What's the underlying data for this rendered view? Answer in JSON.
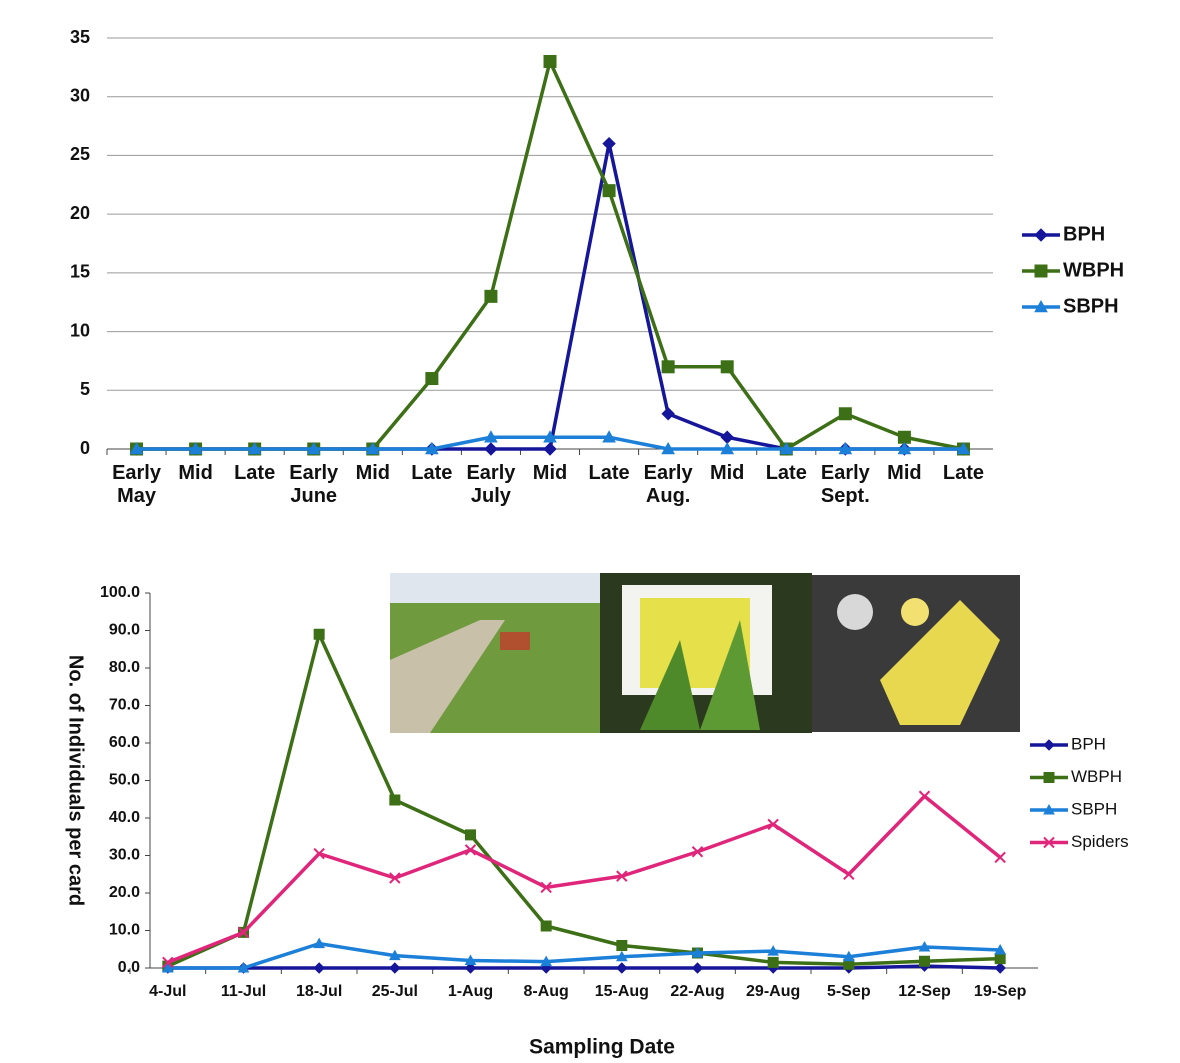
{
  "chart_data": [
    {
      "type": "line",
      "categories": [
        "Early May",
        "Mid",
        "Late",
        "Early June",
        "Mid",
        "Late",
        "Early July",
        "Mid",
        "Late",
        "Early Aug.",
        "Mid",
        "Late",
        "Early Sept.",
        "Mid",
        "Late"
      ],
      "series": [
        {
          "name": "BPH",
          "color": "#16169a",
          "marker": "diamond",
          "values": [
            0,
            0,
            0,
            0,
            0,
            0,
            0,
            0,
            26,
            3,
            1,
            0,
            0,
            0,
            0
          ]
        },
        {
          "name": "WBPH",
          "color": "#3d7016",
          "marker": "square",
          "values": [
            0,
            0,
            0,
            0,
            0,
            6,
            13,
            33,
            22,
            7,
            7,
            0,
            3,
            1,
            0
          ]
        },
        {
          "name": "SBPH",
          "color": "#1c7fd8",
          "marker": "triangle",
          "values": [
            0,
            0,
            0,
            0,
            0,
            0,
            1,
            1,
            1,
            0,
            0,
            0,
            0,
            0,
            0
          ]
        }
      ],
      "ylim": [
        0,
        35
      ],
      "yticks": [
        0,
        5,
        10,
        15,
        20,
        25,
        30,
        35
      ],
      "grid": true,
      "legend": "right"
    },
    {
      "type": "line",
      "x_label": "Sampling Date",
      "y_label": "No. of Individuals per card",
      "categories": [
        "4-Jul",
        "11-Jul",
        "18-Jul",
        "25-Jul",
        "1-Aug",
        "8-Aug",
        "15-Aug",
        "22-Aug",
        "29-Aug",
        "5-Sep",
        "12-Sep",
        "19-Sep"
      ],
      "series": [
        {
          "name": "BPH",
          "color": "#16169a",
          "marker": "diamond",
          "values": [
            0,
            0,
            0,
            0,
            0,
            0,
            0,
            0,
            0,
            0,
            0.5,
            0
          ]
        },
        {
          "name": "WBPH",
          "color": "#3d7016",
          "marker": "square",
          "values": [
            0.5,
            9.5,
            89,
            44.8,
            35.5,
            11.2,
            6,
            4,
            1.5,
            1,
            1.8,
            2.5
          ]
        },
        {
          "name": "SBPH",
          "color": "#1c7fd8",
          "marker": "triangle",
          "values": [
            0,
            0,
            6.5,
            3.3,
            2,
            1.7,
            3,
            4,
            4.5,
            3,
            5.6,
            4.8
          ]
        },
        {
          "name": "Spiders",
          "color": "#e0267a",
          "marker": "x",
          "values": [
            1.5,
            9.5,
            30.5,
            24,
            31.5,
            21.5,
            24.5,
            31,
            38.3,
            25,
            45.8,
            29.5
          ]
        }
      ],
      "ylim": [
        0,
        100
      ],
      "yticks": [
        {
          "value": 0,
          "label": "0.0"
        },
        {
          "value": 10,
          "label": "10.0"
        },
        {
          "value": 20,
          "label": "20.0"
        },
        {
          "value": 30,
          "label": "30.0"
        },
        {
          "value": 40,
          "label": "40.0"
        },
        {
          "value": 50,
          "label": "50.0"
        },
        {
          "value": 60,
          "label": "60.0"
        },
        {
          "value": 70,
          "label": "70.0"
        },
        {
          "value": 80,
          "label": "80.0"
        },
        {
          "value": 90,
          "label": "90.0"
        },
        {
          "value": 100,
          "label": "100.0"
        }
      ],
      "grid": false,
      "legend": "right"
    }
  ]
}
